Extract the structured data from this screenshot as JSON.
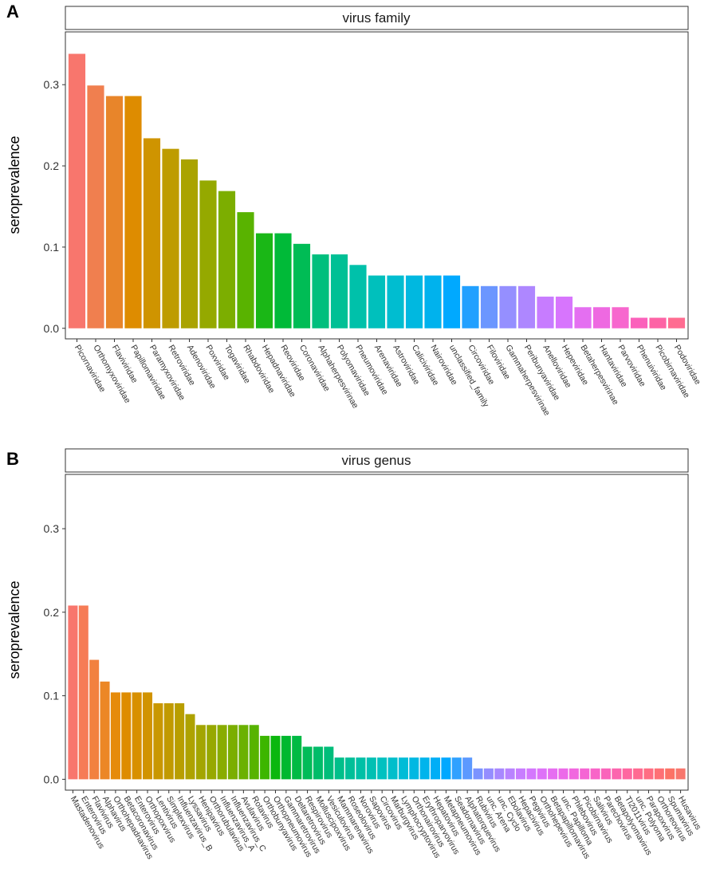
{
  "chart_data": [
    {
      "panel": "A",
      "type": "bar",
      "strip_title": "virus family",
      "ylabel": "seroprevalence",
      "ylim": [
        -0.013,
        0.365
      ],
      "yticks": [
        "0.0",
        "0.1",
        "0.2",
        "0.3"
      ],
      "grid": false,
      "categories": [
        "Picornaviridae",
        "Orthomyxoviridae",
        "Flaviviridae",
        "Papillomaviridae",
        "Paramyxoviridae",
        "Retroviridae",
        "Adenoviridae",
        "Poxviridae",
        "Togaviridae",
        "Rhabdoviridae",
        "Hepadnaviridae",
        "Reoviridae",
        "Coronaviridae",
        "Alphaherpesvirinae",
        "Polyomaviridae",
        "Pneumoviridae",
        "Arenaviridae",
        "Astroviridae",
        "Caliciviridae",
        "Nairoviridae",
        "unclassified_family",
        "Circoviridae",
        "Filoviridae",
        "Gammaherpesvirinae",
        "Peribunyaviridae",
        "Anelloviridae",
        "Hepeviridae",
        "Betaherpesvirinae",
        "Hantaviridae",
        "Parvoviridae",
        "Phenuiviridae",
        "Picobirnaviridae",
        "Podoviridae"
      ],
      "values": [
        0.338,
        0.299,
        0.286,
        0.286,
        0.234,
        0.221,
        0.208,
        0.182,
        0.169,
        0.143,
        0.117,
        0.117,
        0.104,
        0.091,
        0.091,
        0.078,
        0.065,
        0.065,
        0.065,
        0.065,
        0.065,
        0.052,
        0.052,
        0.052,
        0.052,
        0.039,
        0.039,
        0.026,
        0.026,
        0.026,
        0.013,
        0.013,
        0.013
      ],
      "colors": [
        "#F8766D",
        "#F07F4F",
        "#E8852A",
        "#DE8C00",
        "#CF9400",
        "#BE9C00",
        "#AAA300",
        "#95A900",
        "#7CAE00",
        "#59B300",
        "#1AB716",
        "#00BA38",
        "#00BC55",
        "#00BF7D",
        "#00C095",
        "#00C1AA",
        "#00C0BC",
        "#00BDD0",
        "#00B8E0",
        "#00B2ED",
        "#00A9FF",
        "#21A0FF",
        "#6B96FF",
        "#958FFF",
        "#AE87FF",
        "#C77CFF",
        "#D775FD",
        "#E46FF1",
        "#EE69E1",
        "#F767CE",
        "#FB61BB",
        "#FD63A5",
        "#FF6C91"
      ]
    },
    {
      "panel": "B",
      "type": "bar",
      "strip_title": "virus genus",
      "ylabel": "seroprevalence",
      "ylim": [
        -0.013,
        0.365
      ],
      "yticks": [
        "0.0",
        "0.1",
        "0.2",
        "0.3"
      ],
      "grid": false,
      "categories": [
        "Mastadenovirus",
        "Enterovirus",
        "Flavivirus",
        "Alphavirus",
        "Orthohepadnavirus",
        "Betacoronavirus",
        "Enterovirus",
        "Orthopoxvirus",
        "Lentivirus",
        "Simplexvirus",
        "Influenzavirus_B",
        "Lyssavirus",
        "Henipavirus",
        "Orthorubulavirus",
        "Influenzavirus_A",
        "Influenzavirus_C",
        "Avulavirus",
        "Rotavirus",
        "Orthobunyavirus",
        "Orthopneumovirus",
        "Gammaretrovirus",
        "Deltaretrovirus",
        "Respirovirus",
        "Molluscipoxvirus",
        "Vesiculovirus",
        "Mammarenavirus",
        "Roseolovirus",
        "Norovirus",
        "Sapovirus",
        "Circovirus",
        "Marburgvirus",
        "Lymphocryptovirus",
        "Orthonairovirus",
        "Erythroparvovirus",
        "Hepatovirus",
        "Metapneumovirus",
        "Seadornavirus",
        "Alphatorquevirus",
        "Rubivirus",
        "unc. Arena",
        "unc. Cyclo",
        "Ebolavirus",
        "Hepacivirus",
        "Pegivirus",
        "Orthohepevirus",
        "Betapapillomavirus",
        "unc. Papilloma",
        "Phlebovirus",
        "Picobirnavirus",
        "Salivirus",
        "Parechovirus",
        "Betapolyomavirus",
        "TI2011virus",
        "unc. Polyoma",
        "Parapoxvirus",
        "Orthoreovirus",
        "Spumavirus",
        "Husavirus"
      ],
      "values": [
        0.208,
        0.208,
        0.143,
        0.117,
        0.104,
        0.104,
        0.104,
        0.104,
        0.091,
        0.091,
        0.091,
        0.078,
        0.065,
        0.065,
        0.065,
        0.065,
        0.065,
        0.065,
        0.052,
        0.052,
        0.052,
        0.052,
        0.039,
        0.039,
        0.039,
        0.026,
        0.026,
        0.026,
        0.026,
        0.026,
        0.026,
        0.026,
        0.026,
        0.026,
        0.026,
        0.026,
        0.026,
        0.026,
        0.013,
        0.013,
        0.013,
        0.013,
        0.013,
        0.013,
        0.013,
        0.013,
        0.013,
        0.013,
        0.013,
        0.013,
        0.013,
        0.013,
        0.013,
        0.013,
        0.013,
        0.013,
        0.013,
        0.013
      ],
      "colors": [
        "#F8766D",
        "#F67C56",
        "#F2813F",
        "#EC8726",
        "#E68B0A",
        "#DE8C00",
        "#D89000",
        "#D19300",
        "#C99700",
        "#C19A00",
        "#B89E00",
        "#AEA200",
        "#A3A500",
        "#97A800",
        "#89AC00",
        "#7BAE00",
        "#6BB100",
        "#57B300",
        "#3DB600",
        "#0BB70E",
        "#00B82F",
        "#00BA44",
        "#00BB58",
        "#00BC69",
        "#00BD7A",
        "#00BF8A",
        "#00BF98",
        "#00C0A6",
        "#00C0B3",
        "#00C1C0",
        "#00BECB",
        "#00BCD7",
        "#00B8E2",
        "#00B4EC",
        "#00AEF6",
        "#00A8FF",
        "#30A1FF",
        "#5C99FF",
        "#7B93FF",
        "#948DFF",
        "#A888FF",
        "#B983FF",
        "#C87DFF",
        "#D477FD",
        "#DE72F8",
        "#E66EF1",
        "#EC6AE9",
        "#F167DF",
        "#F565D4",
        "#F865C8",
        "#FA64BB",
        "#FC65AE",
        "#FE67A0",
        "#FF6A91",
        "#FF6D83",
        "#FE7075",
        "#FC7266",
        "#F8766D"
      ]
    }
  ]
}
